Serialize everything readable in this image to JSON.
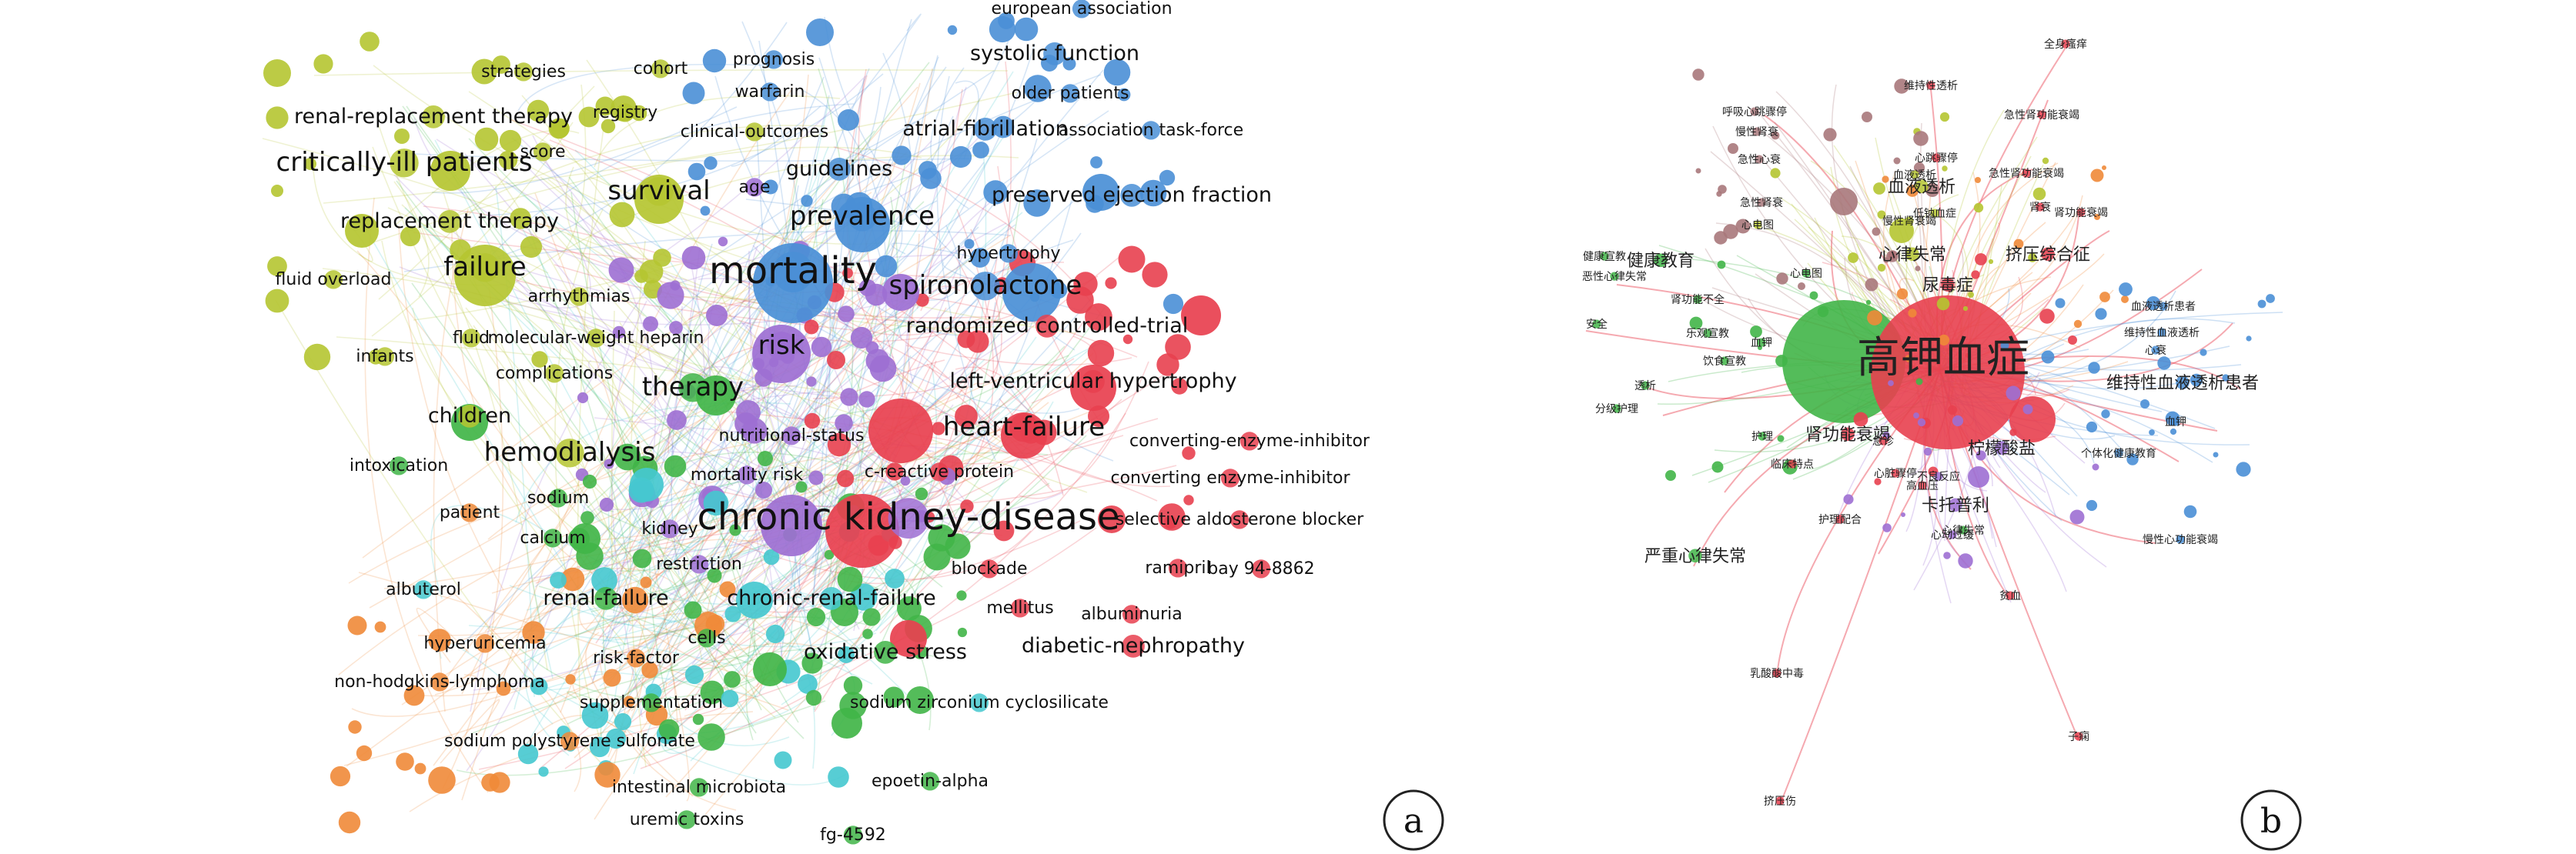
{
  "panels": [
    {
      "id": "a",
      "letter": "a",
      "labels": [
        {
          "text": "european association",
          "cluster": "blue",
          "size": "s"
        },
        {
          "text": "systolic function",
          "cluster": "blue",
          "size": "m"
        },
        {
          "text": "older patients",
          "cluster": "blue",
          "size": "s"
        },
        {
          "text": "prognosis",
          "cluster": "blue",
          "size": "s"
        },
        {
          "text": "warfarin",
          "cluster": "blue",
          "size": "s"
        },
        {
          "text": "atrial-fibrillation",
          "cluster": "blue",
          "size": "m"
        },
        {
          "text": "association task-force",
          "cluster": "blue",
          "size": "s"
        },
        {
          "text": "guidelines",
          "cluster": "blue",
          "size": "m"
        },
        {
          "text": "prevalence",
          "cluster": "blue",
          "size": "l"
        },
        {
          "text": "preserved ejection fraction",
          "cluster": "blue",
          "size": "m"
        },
        {
          "text": "hypertrophy",
          "cluster": "blue",
          "size": "s"
        },
        {
          "text": "spironolactone",
          "cluster": "blue",
          "size": "l"
        },
        {
          "text": "mortality",
          "cluster": "blue",
          "size": "xl"
        },
        {
          "text": "strategies",
          "cluster": "yellow",
          "size": "s"
        },
        {
          "text": "cohort",
          "cluster": "yellow",
          "size": "s"
        },
        {
          "text": "renal-replacement therapy",
          "cluster": "yellow",
          "size": "m"
        },
        {
          "text": "registry",
          "cluster": "yellow",
          "size": "s"
        },
        {
          "text": "score",
          "cluster": "yellow",
          "size": "s"
        },
        {
          "text": "clinical-outcomes",
          "cluster": "yellow",
          "size": "s"
        },
        {
          "text": "critically-ill patients",
          "cluster": "yellow",
          "size": "l"
        },
        {
          "text": "age",
          "cluster": "purple",
          "size": "s"
        },
        {
          "text": "survival",
          "cluster": "yellow",
          "size": "l"
        },
        {
          "text": "replacement therapy",
          "cluster": "yellow",
          "size": "m"
        },
        {
          "text": "failure",
          "cluster": "yellow",
          "size": "l"
        },
        {
          "text": "fluid overload",
          "cluster": "yellow",
          "size": "s"
        },
        {
          "text": "arrhythmias",
          "cluster": "yellow",
          "size": "s"
        },
        {
          "text": "fluid",
          "cluster": "yellow",
          "size": "s"
        },
        {
          "text": "molecular-weight heparin",
          "cluster": "yellow",
          "size": "s"
        },
        {
          "text": "infants",
          "cluster": "yellow",
          "size": "s"
        },
        {
          "text": "complications",
          "cluster": "yellow",
          "size": "s"
        },
        {
          "text": "therapy",
          "cluster": "green",
          "size": "l"
        },
        {
          "text": "children",
          "cluster": "yellow",
          "size": "m"
        },
        {
          "text": "hemodialysis",
          "cluster": "yellow",
          "size": "l"
        },
        {
          "text": "intoxication",
          "cluster": "green",
          "size": "s"
        },
        {
          "text": "risk",
          "cluster": "purple",
          "size": "l"
        },
        {
          "text": "randomized controlled-trial",
          "cluster": "red",
          "size": "m"
        },
        {
          "text": "left-ventricular hypertrophy",
          "cluster": "red",
          "size": "m"
        },
        {
          "text": "heart-failure",
          "cluster": "red",
          "size": "l"
        },
        {
          "text": "converting-enzyme-inhibitor",
          "cluster": "red",
          "size": "s"
        },
        {
          "text": "converting enzyme-inhibitor",
          "cluster": "red",
          "size": "s"
        },
        {
          "text": "nutritional-status",
          "cluster": "purple",
          "size": "s"
        },
        {
          "text": "c-reactive protein",
          "cluster": "red",
          "size": "s"
        },
        {
          "text": "mortality risk",
          "cluster": "purple",
          "size": "s"
        },
        {
          "text": "sodium",
          "cluster": "green",
          "size": "s"
        },
        {
          "text": "selective aldosterone blocker",
          "cluster": "red",
          "size": "s"
        },
        {
          "text": "patient",
          "cluster": "orange",
          "size": "s"
        },
        {
          "text": "chronic kidney-disease",
          "cluster": "purple",
          "size": "xl"
        },
        {
          "text": "calcium",
          "cluster": "green",
          "size": "s"
        },
        {
          "text": "kidney",
          "cluster": "purple",
          "size": "s"
        },
        {
          "text": "restriction",
          "cluster": "purple",
          "size": "s"
        },
        {
          "text": "blockade",
          "cluster": "red",
          "size": "s"
        },
        {
          "text": "ramipril",
          "cluster": "red",
          "size": "s"
        },
        {
          "text": "bay 94-8862",
          "cluster": "red",
          "size": "s"
        },
        {
          "text": "albuterol",
          "cluster": "cyan",
          "size": "s"
        },
        {
          "text": "renal-failure",
          "cluster": "green",
          "size": "m"
        },
        {
          "text": "chronic-renal-failure",
          "cluster": "cyan",
          "size": "m"
        },
        {
          "text": "mellitus",
          "cluster": "red",
          "size": "s"
        },
        {
          "text": "albuminuria",
          "cluster": "red",
          "size": "s"
        },
        {
          "text": "cells",
          "cluster": "green",
          "size": "s"
        },
        {
          "text": "hyperuricemia",
          "cluster": "orange",
          "size": "s"
        },
        {
          "text": "diabetic-nephropathy",
          "cluster": "red",
          "size": "m"
        },
        {
          "text": "risk-factor",
          "cluster": "orange",
          "size": "s"
        },
        {
          "text": "oxidative stress",
          "cluster": "green",
          "size": "m"
        },
        {
          "text": "non-hodgkins-lymphoma",
          "cluster": "orange",
          "size": "s"
        },
        {
          "text": "supplementation",
          "cluster": "green",
          "size": "s"
        },
        {
          "text": "sodium zirconium cyclosilicate",
          "cluster": "cyan",
          "size": "s"
        },
        {
          "text": "sodium polystyrene sulfonate",
          "cluster": "orange",
          "size": "s"
        },
        {
          "text": "epoetin-alpha",
          "cluster": "green",
          "size": "s"
        },
        {
          "text": "intestinal microbiota",
          "cluster": "green",
          "size": "s"
        },
        {
          "text": "uremic toxins",
          "cluster": "green",
          "size": "s"
        },
        {
          "text": "fg-4592",
          "cluster": "green",
          "size": "s"
        }
      ]
    },
    {
      "id": "b",
      "letter": "b",
      "labels": [
        {
          "text": "全身瘙痒",
          "cluster": "red",
          "size": "s"
        },
        {
          "text": "维持性透析",
          "cluster": "red",
          "size": "s"
        },
        {
          "text": "呼吸心跳骤停",
          "cluster": "brown",
          "size": "s"
        },
        {
          "text": "慢性肾衰",
          "cluster": "brown",
          "size": "s"
        },
        {
          "text": "急性肾功能衰竭",
          "cluster": "red",
          "size": "s"
        },
        {
          "text": "急性心衰",
          "cluster": "brown",
          "size": "s"
        },
        {
          "text": "心跳骤停",
          "cluster": "red",
          "size": "s"
        },
        {
          "text": "血液透析",
          "cluster": "yellow",
          "size": "s"
        },
        {
          "text": "急性肾功能衰竭",
          "cluster": "red",
          "size": "s"
        },
        {
          "text": "血液透析",
          "cluster": "yellow",
          "size": "m"
        },
        {
          "text": "肾衰",
          "cluster": "red",
          "size": "s"
        },
        {
          "text": "肾功能衰竭",
          "cluster": "red",
          "size": "s"
        },
        {
          "text": "急性肾衰",
          "cluster": "brown",
          "size": "s"
        },
        {
          "text": "低钠血症",
          "cluster": "yellow",
          "size": "s"
        },
        {
          "text": "慢性肾衰竭",
          "cluster": "yellow",
          "size": "s"
        },
        {
          "text": "心电图",
          "cluster": "yellow",
          "size": "s"
        },
        {
          "text": "心律失常",
          "cluster": "yellow",
          "size": "m"
        },
        {
          "text": "挤压综合征",
          "cluster": "red",
          "size": "m"
        },
        {
          "text": "健康宣教",
          "cluster": "green",
          "size": "s"
        },
        {
          "text": "健康教育",
          "cluster": "green",
          "size": "m"
        },
        {
          "text": "心电图",
          "cluster": "green",
          "size": "s"
        },
        {
          "text": "尿毒症",
          "cluster": "red",
          "size": "m"
        },
        {
          "text": "恶性心律失常",
          "cluster": "green",
          "size": "s"
        },
        {
          "text": "肾功能不全",
          "cluster": "green",
          "size": "s"
        },
        {
          "text": "高钾血症",
          "cluster": "red",
          "size": "xl"
        },
        {
          "text": "维持性血液透析患者",
          "cluster": "blue",
          "size": "m"
        },
        {
          "text": "血液透析患者",
          "cluster": "blue",
          "size": "s"
        },
        {
          "text": "维持性血液透析",
          "cluster": "blue",
          "size": "s"
        },
        {
          "text": "心衰",
          "cluster": "blue",
          "size": "s"
        },
        {
          "text": "安全",
          "cluster": "green",
          "size": "s"
        },
        {
          "text": "乐观宣教",
          "cluster": "green",
          "size": "s"
        },
        {
          "text": "血钾",
          "cluster": "green",
          "size": "s"
        },
        {
          "text": "饮食宣教",
          "cluster": "green",
          "size": "s"
        },
        {
          "text": "透析",
          "cluster": "green",
          "size": "s"
        },
        {
          "text": "分级护理",
          "cluster": "green",
          "size": "s"
        },
        {
          "text": "护理",
          "cluster": "green",
          "size": "s"
        },
        {
          "text": "肾功能衰竭",
          "cluster": "red",
          "size": "m"
        },
        {
          "text": "柠檬酸盐",
          "cluster": "purple",
          "size": "m"
        },
        {
          "text": "急诊",
          "cluster": "red",
          "size": "s"
        },
        {
          "text": "心脏骤停",
          "cluster": "red",
          "size": "s"
        },
        {
          "text": "高血压",
          "cluster": "red",
          "size": "s"
        },
        {
          "text": "不良反应",
          "cluster": "purple",
          "size": "s"
        },
        {
          "text": "个体化健康教育",
          "cluster": "blue",
          "size": "s"
        },
        {
          "text": "血钾",
          "cluster": "blue",
          "size": "s"
        },
        {
          "text": "卡托普利",
          "cluster": "purple",
          "size": "m"
        },
        {
          "text": "心律失常",
          "cluster": "green",
          "size": "s"
        },
        {
          "text": "临床特点",
          "cluster": "red",
          "size": "s"
        },
        {
          "text": "心动过缓",
          "cluster": "purple",
          "size": "s"
        },
        {
          "text": "慢性心功能衰竭",
          "cluster": "blue",
          "size": "s"
        },
        {
          "text": "严重心律失常",
          "cluster": "green",
          "size": "m"
        },
        {
          "text": "护理配合",
          "cluster": "red",
          "size": "s"
        },
        {
          "text": "贫血",
          "cluster": "red",
          "size": "s"
        },
        {
          "text": "乳酸酸中毒",
          "cluster": "red",
          "size": "s"
        },
        {
          "text": "子痫",
          "cluster": "red",
          "size": "s"
        },
        {
          "text": "挤压伤",
          "cluster": "red",
          "size": "s"
        }
      ]
    }
  ],
  "colors": {
    "red": "#e8404f",
    "blue": "#4a8fd6",
    "green": "#41b548",
    "yellow": "#b5c531",
    "purple": "#9d6fd3",
    "cyan": "#45c8cf",
    "orange": "#ef8a38",
    "brown": "#a8787b"
  }
}
